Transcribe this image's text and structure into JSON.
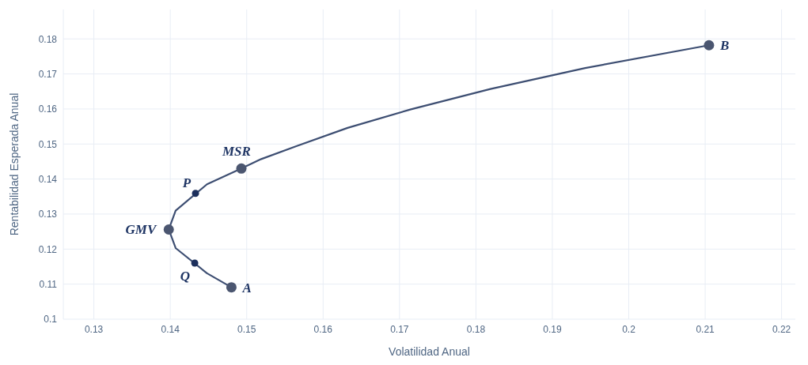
{
  "chart_data": {
    "type": "line",
    "xlabel": "Volatilidad Anual",
    "ylabel": "Rentabilidad Esperada Anual",
    "xlim": [
      0.126,
      0.2218
    ],
    "xticks": [
      0.13,
      0.14,
      0.15,
      0.16,
      0.17,
      0.18,
      0.19,
      0.2,
      0.21,
      0.22
    ],
    "ylim": [
      0.1,
      0.1884
    ],
    "yticks": [
      0.1,
      0.11,
      0.12,
      0.13,
      0.14,
      0.15,
      0.16,
      0.17,
      0.18
    ],
    "grid": true,
    "legend": false,
    "series": [
      {
        "color": "#3d4e72",
        "marker": "none",
        "line_style": "solid",
        "x": [
          0.148,
          0.1448,
          0.1407,
          0.1398,
          0.1407,
          0.1448,
          0.1493,
          0.1519,
          0.1565,
          0.1632,
          0.1715,
          0.1819,
          0.1943,
          0.2105
        ],
        "values": [
          0.1091,
          0.1131,
          0.1203,
          0.1256,
          0.131,
          0.1385,
          0.143,
          0.1457,
          0.1494,
          0.1546,
          0.1599,
          0.1657,
          0.1717,
          0.1782
        ]
      },
      {
        "type": "scatter",
        "color": "#4b5670",
        "marker": "circle",
        "x": [
          0.148,
          0.1398,
          0.1493,
          0.2105
        ],
        "values": [
          0.1091,
          0.1256,
          0.143,
          0.1782
        ]
      },
      {
        "type": "scatter",
        "color": "#1c2f5c",
        "marker": "circle",
        "x": [
          0.1433,
          0.1432
        ],
        "values": [
          0.1359,
          0.116
        ]
      }
    ],
    "annotations": [
      {
        "text": "A",
        "x": 0.148,
        "y": 0.1091
      },
      {
        "text": "GMV",
        "x": 0.1398,
        "y": 0.1256
      },
      {
        "text": "MSR",
        "x": 0.1493,
        "y": 0.143
      },
      {
        "text": "B",
        "x": 0.2105,
        "y": 0.1782
      },
      {
        "text": "P",
        "x": 0.1433,
        "y": 0.1359
      },
      {
        "text": "Q",
        "x": 0.1432,
        "y": 0.116
      }
    ]
  }
}
